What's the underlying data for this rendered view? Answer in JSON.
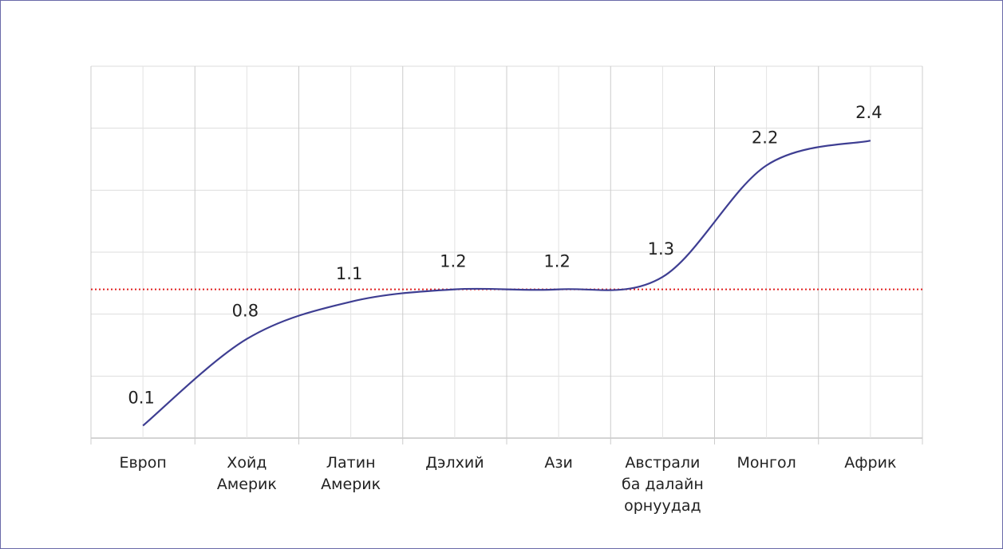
{
  "chart_data": {
    "type": "line",
    "categories": [
      "Европ",
      "Хойд\nАмерик",
      "Латин\nАмерик",
      "Дэлхий",
      "Ази",
      "Австрали\nба далайн\nорнуудад",
      "Монгол",
      "Африк"
    ],
    "series": [
      {
        "color": "#3e3e92",
        "values": [
          0.1,
          0.8,
          1.1,
          1.2,
          1.2,
          1.3,
          2.2,
          2.4
        ]
      }
    ],
    "ylim": [
      0,
      3
    ],
    "yticks": [
      0,
      0.5,
      1,
      1.5,
      2,
      2.5,
      3
    ],
    "grid": true,
    "smooth": true,
    "reference_line": {
      "value": 1.2,
      "color": "#e02020",
      "style": "dotted"
    }
  }
}
